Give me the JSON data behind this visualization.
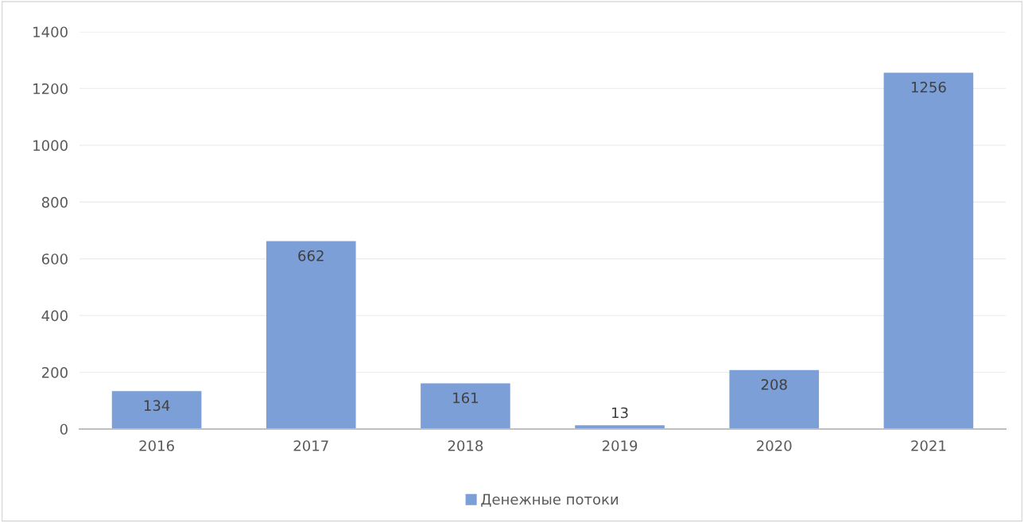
{
  "chart_data": {
    "type": "bar",
    "categories": [
      "2016",
      "2017",
      "2018",
      "2019",
      "2020",
      "2021"
    ],
    "series": [
      {
        "name": "Денежные потоки",
        "color": "#7b9fd6",
        "values": [
          134,
          662,
          161,
          13,
          208,
          1256
        ]
      }
    ],
    "ylim": [
      0,
      1400
    ],
    "yticks": [
      0,
      200,
      400,
      600,
      800,
      1000,
      1200,
      1400
    ],
    "grid": "y",
    "legend": "bottom",
    "data_labels": true
  }
}
